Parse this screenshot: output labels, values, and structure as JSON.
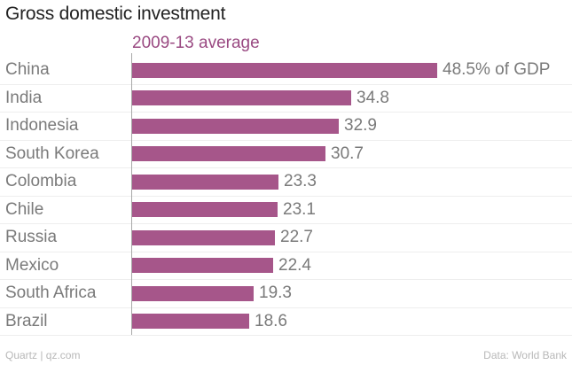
{
  "chart_data": {
    "type": "bar",
    "orientation": "horizontal",
    "title": "Gross domestic investment",
    "subtitle": "2009-13 average",
    "categories": [
      "China",
      "India",
      "Indonesia",
      "South Korea",
      "Colombia",
      "Chile",
      "Russia",
      "Mexico",
      "South Africa",
      "Brazil"
    ],
    "values": [
      48.5,
      34.8,
      32.9,
      30.7,
      23.3,
      23.1,
      22.7,
      22.4,
      19.3,
      18.6
    ],
    "value_labels": [
      "48.5% of GDP",
      "34.8",
      "32.9",
      "30.7",
      "23.3",
      "23.1",
      "22.7",
      "22.4",
      "19.3",
      "18.6"
    ],
    "unit": "% of GDP",
    "xlim": [
      0,
      48.5
    ],
    "bar_color": "#a6568a",
    "source_left": "Quartz | qz.com",
    "source_right": "Data: World Bank"
  }
}
